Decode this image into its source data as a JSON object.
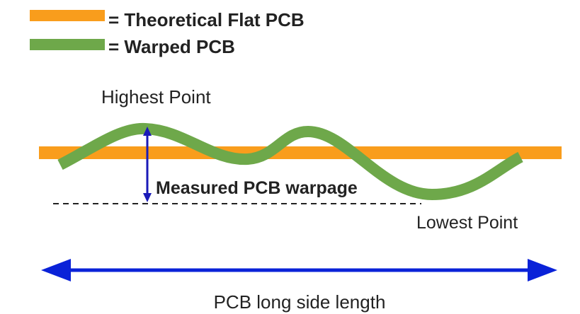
{
  "legend": [
    {
      "label": "= Theoretical Flat PCB"
    },
    {
      "label": "= Warped PCB"
    }
  ],
  "labels": {
    "highest": "Highest Point",
    "warpage": "Measured PCB warpage",
    "lowest": "Lowest Point",
    "length": "PCB long side length"
  }
}
